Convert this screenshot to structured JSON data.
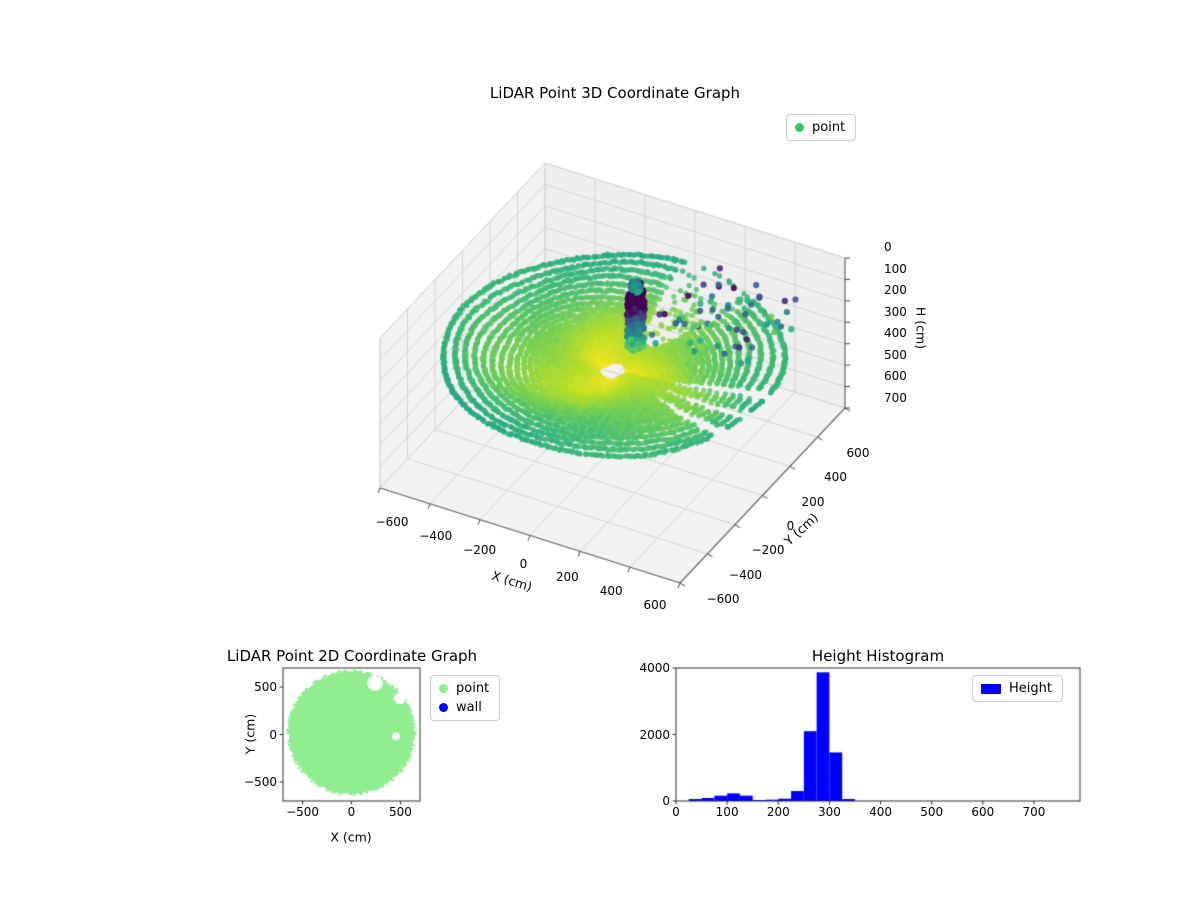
{
  "chart_data": [
    {
      "id": "plot3d",
      "type": "scatter",
      "projection": "3d",
      "title": "LiDAR Point 3D Coordinate Graph",
      "xlabel": "X (cm)",
      "ylabel": "Y (cm)",
      "zlabel": "H (cm)",
      "xticks": [
        -600,
        -400,
        -200,
        0,
        200,
        400,
        600
      ],
      "yticks": [
        -600,
        -400,
        -200,
        0,
        200,
        400,
        600
      ],
      "zticks": [
        0,
        100,
        200,
        300,
        400,
        500,
        600,
        700
      ],
      "zaxis_inverted": true,
      "colormap": "viridis",
      "grid": true,
      "legend": {
        "location": "upper right",
        "entries": [
          {
            "label": "point",
            "color": "#44bf70",
            "marker": "circle"
          }
        ]
      },
      "series": [
        {
          "name": "floor-disk",
          "desc": "circular LiDAR floor scan rings colored by height",
          "center_xy_cm": [
            0,
            0
          ],
          "radius_range_cm": [
            55,
            620
          ],
          "height_range_cm": [
            255,
            350
          ]
        },
        {
          "name": "object-column",
          "desc": "vertical object near scanner (low H, dark viridis)",
          "center_xy_cm": [
            28,
            118
          ],
          "radius_cm": 38,
          "height_range_cm": [
            0,
            300
          ]
        },
        {
          "name": "sparse-points",
          "desc": "scattered mid-height returns right of object",
          "x_range_cm": [
            80,
            480
          ],
          "y_range_cm": [
            100,
            520
          ],
          "height_range_cm": [
            110,
            310
          ],
          "count": 70
        }
      ]
    },
    {
      "id": "plot2d",
      "type": "scatter",
      "title": "LiDAR Point 2D Coordinate Graph",
      "xlabel": "X (cm)",
      "ylabel": "Y (cm)",
      "xticks": [
        -500,
        0,
        500
      ],
      "yticks": [
        -500,
        0,
        500
      ],
      "xlim": [
        -700,
        700
      ],
      "ylim": [
        -700,
        700
      ],
      "legend": {
        "location": "outside upper right",
        "entries": [
          {
            "label": "point",
            "color": "#90ee90",
            "marker": "circle"
          },
          {
            "label": "wall",
            "color": "#0000ff",
            "marker": "circle"
          }
        ]
      },
      "series": [
        {
          "name": "point",
          "marker_color": "#90ee90",
          "shape": "filled-disk",
          "center_cm": [
            0,
            20
          ],
          "radius_cm": 640,
          "gaps": [
            {
              "center_cm": [
                240,
                540
              ],
              "radius_cm": 80
            },
            {
              "center_cm": [
                495,
                380
              ],
              "radius_cm": 60
            },
            {
              "center_cm": [
                455,
                -20
              ],
              "radius_cm": 40
            }
          ]
        },
        {
          "name": "wall",
          "marker_color": "#0000ff",
          "visible_points": 0
        }
      ]
    },
    {
      "id": "histogram",
      "type": "bar",
      "title": "Height Histogram",
      "bar_color": "#0000ff",
      "legend": {
        "location": "upper right",
        "entries": [
          {
            "label": "Height",
            "color": "#0000ff",
            "marker": "patch"
          }
        ]
      },
      "bin_edges": [
        25,
        50,
        75,
        100,
        125,
        150,
        175,
        200,
        225,
        250,
        275,
        300,
        325,
        350
      ],
      "counts": [
        60,
        90,
        160,
        230,
        160,
        30,
        40,
        70,
        300,
        2100,
        3870,
        1460,
        60
      ],
      "xticks": [
        0,
        100,
        200,
        300,
        400,
        500,
        600,
        700
      ],
      "yticks": [
        0,
        2000,
        4000
      ],
      "xlim": [
        0,
        790
      ],
      "ylim": [
        0,
        4000
      ]
    }
  ]
}
